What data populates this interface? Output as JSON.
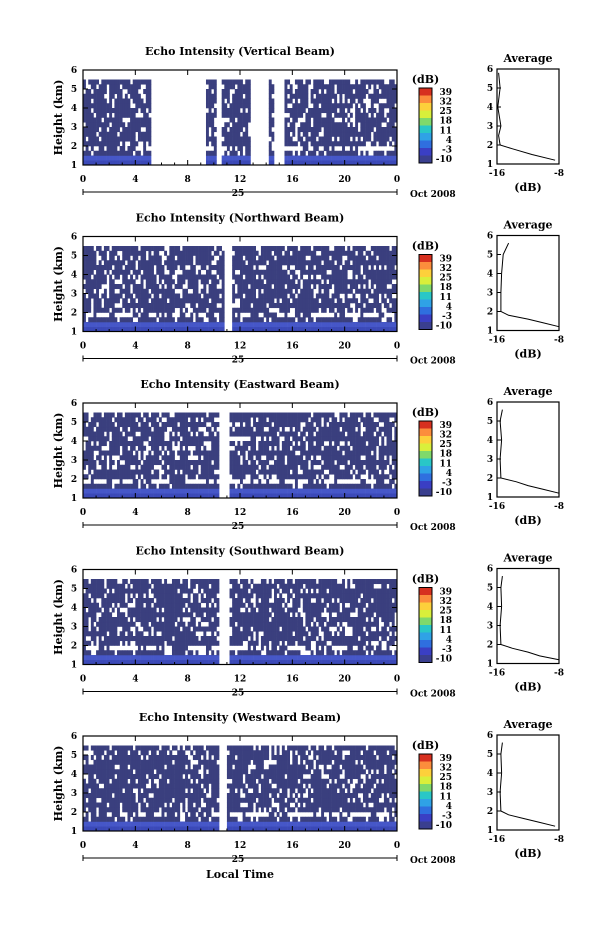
{
  "colorbar_label": "(dB)",
  "colorbar_ticks": [
    "39",
    "32",
    "25",
    "18",
    "11",
    "4",
    "-3",
    "-10"
  ],
  "colorbar_colors": [
    "#d7301f",
    "#fc8d3c",
    "#fdd03b",
    "#d9ef3b",
    "#7fd96b",
    "#29c7c7",
    "#2fa2e6",
    "#2f6fdf",
    "#3a3fc4",
    "#3a3f8f"
  ],
  "time_ticks": [
    "0",
    "4",
    "8",
    "12",
    "16",
    "20",
    "0"
  ],
  "date_tick": "25",
  "date_label": "Oct 2008",
  "xlabel": "Local Time",
  "ylabel": "Height (km)",
  "height_ticks": [
    "1",
    "2",
    "3",
    "4",
    "5",
    "6"
  ],
  "avg_title": "Average",
  "avg_xticks": [
    "-16",
    "-8"
  ],
  "avg_xlabel": "(dB)",
  "chart_data": [
    {
      "type": "heatmap",
      "title": "Echo Intensity (Vertical Beam)",
      "xlabel": "Local Time",
      "ylabel": "Height (km)",
      "xlim": [
        0,
        24
      ],
      "ylim": [
        1,
        6
      ],
      "zlim": [
        -10,
        39
      ],
      "colorbar_label": "(dB)",
      "background_value_db": -10,
      "data_coverage": [
        [
          0.1,
          5.1
        ],
        [
          9.5,
          10.2
        ],
        [
          10.6,
          12.8
        ],
        [
          14.3,
          14.6
        ],
        [
          15.3,
          24
        ]
      ],
      "surface_layer_db": -5,
      "average_profile": {
        "x_label": "(dB)",
        "xlim": [
          -16,
          -8
        ],
        "heights_km": [
          1.2,
          1.5,
          1.8,
          2.0,
          2.5,
          3.0,
          4.0,
          5.0,
          5.8
        ],
        "db": [
          -8.5,
          -11.5,
          -14.0,
          -15.6,
          -15.8,
          -15.5,
          -15.9,
          -15.6,
          -15.8
        ]
      }
    },
    {
      "type": "heatmap",
      "title": "Echo Intensity (Northward Beam)",
      "xlabel": "Local Time",
      "ylabel": "Height (km)",
      "xlim": [
        0,
        24
      ],
      "ylim": [
        1,
        6
      ],
      "zlim": [
        -10,
        39
      ],
      "colorbar_label": "(dB)",
      "background_value_db": -10,
      "data_coverage": [
        [
          0,
          10.8
        ],
        [
          11.5,
          24
        ]
      ],
      "surface_layer_db": -5,
      "average_profile": {
        "x_label": "(dB)",
        "xlim": [
          -16,
          -8
        ],
        "heights_km": [
          1.2,
          1.4,
          1.6,
          1.8,
          2.0,
          3.0,
          4.0,
          5.0,
          5.6
        ],
        "db": [
          -8.0,
          -10.0,
          -12.0,
          -14.5,
          -15.5,
          -15.5,
          -15.4,
          -15.2,
          -14.5
        ]
      }
    },
    {
      "type": "heatmap",
      "title": "Echo Intensity (Eastward Beam)",
      "xlabel": "Local Time",
      "ylabel": "Height (km)",
      "xlim": [
        0,
        24
      ],
      "ylim": [
        1,
        6
      ],
      "zlim": [
        -10,
        39
      ],
      "colorbar_label": "(dB)",
      "background_value_db": -10,
      "data_coverage": [
        [
          0,
          10.3
        ],
        [
          11.2,
          24
        ]
      ],
      "surface_layer_db": -5,
      "average_profile": {
        "x_label": "(dB)",
        "xlim": [
          -16,
          -8
        ],
        "heights_km": [
          1.2,
          1.4,
          1.6,
          1.8,
          2.0,
          3.0,
          4.0,
          5.0,
          5.6
        ],
        "db": [
          -8.0,
          -10.0,
          -12.0,
          -13.5,
          -15.5,
          -15.6,
          -15.4,
          -15.6,
          -15.3
        ]
      }
    },
    {
      "type": "heatmap",
      "title": "Echo Intensity (Southward Beam)",
      "xlabel": "Local Time",
      "ylabel": "Height (km)",
      "xlim": [
        0,
        24
      ],
      "ylim": [
        1,
        6
      ],
      "zlim": [
        -10,
        39
      ],
      "colorbar_label": "(dB)",
      "background_value_db": -10,
      "data_coverage": [
        [
          0,
          10.3
        ],
        [
          11.3,
          24
        ]
      ],
      "surface_layer_db": -5,
      "average_profile": {
        "x_label": "(dB)",
        "xlim": [
          -16,
          -8
        ],
        "heights_km": [
          1.2,
          1.4,
          1.6,
          1.8,
          2.0,
          3.0,
          4.0,
          5.0,
          5.6
        ],
        "db": [
          -8.0,
          -10.5,
          -12.0,
          -14.0,
          -15.5,
          -15.6,
          -15.4,
          -15.5,
          -15.3
        ]
      }
    },
    {
      "type": "heatmap",
      "title": "Echo Intensity (Westward Beam)",
      "xlabel": "Local Time",
      "ylabel": "Height (km)",
      "xlim": [
        0,
        24
      ],
      "ylim": [
        1,
        6
      ],
      "zlim": [
        -10,
        39
      ],
      "colorbar_label": "(dB)",
      "background_value_db": -10,
      "data_coverage": [
        [
          0,
          10.3
        ],
        [
          11.1,
          24
        ]
      ],
      "surface_layer_db": -5,
      "average_profile": {
        "x_label": "(dB)",
        "xlim": [
          -16,
          -8
        ],
        "heights_km": [
          1.2,
          1.4,
          1.6,
          1.8,
          2.0,
          3.0,
          4.0,
          5.0,
          5.6
        ],
        "db": [
          -8.5,
          -10.5,
          -12.5,
          -14.5,
          -15.5,
          -15.6,
          -15.4,
          -15.5,
          -15.3
        ]
      }
    }
  ]
}
